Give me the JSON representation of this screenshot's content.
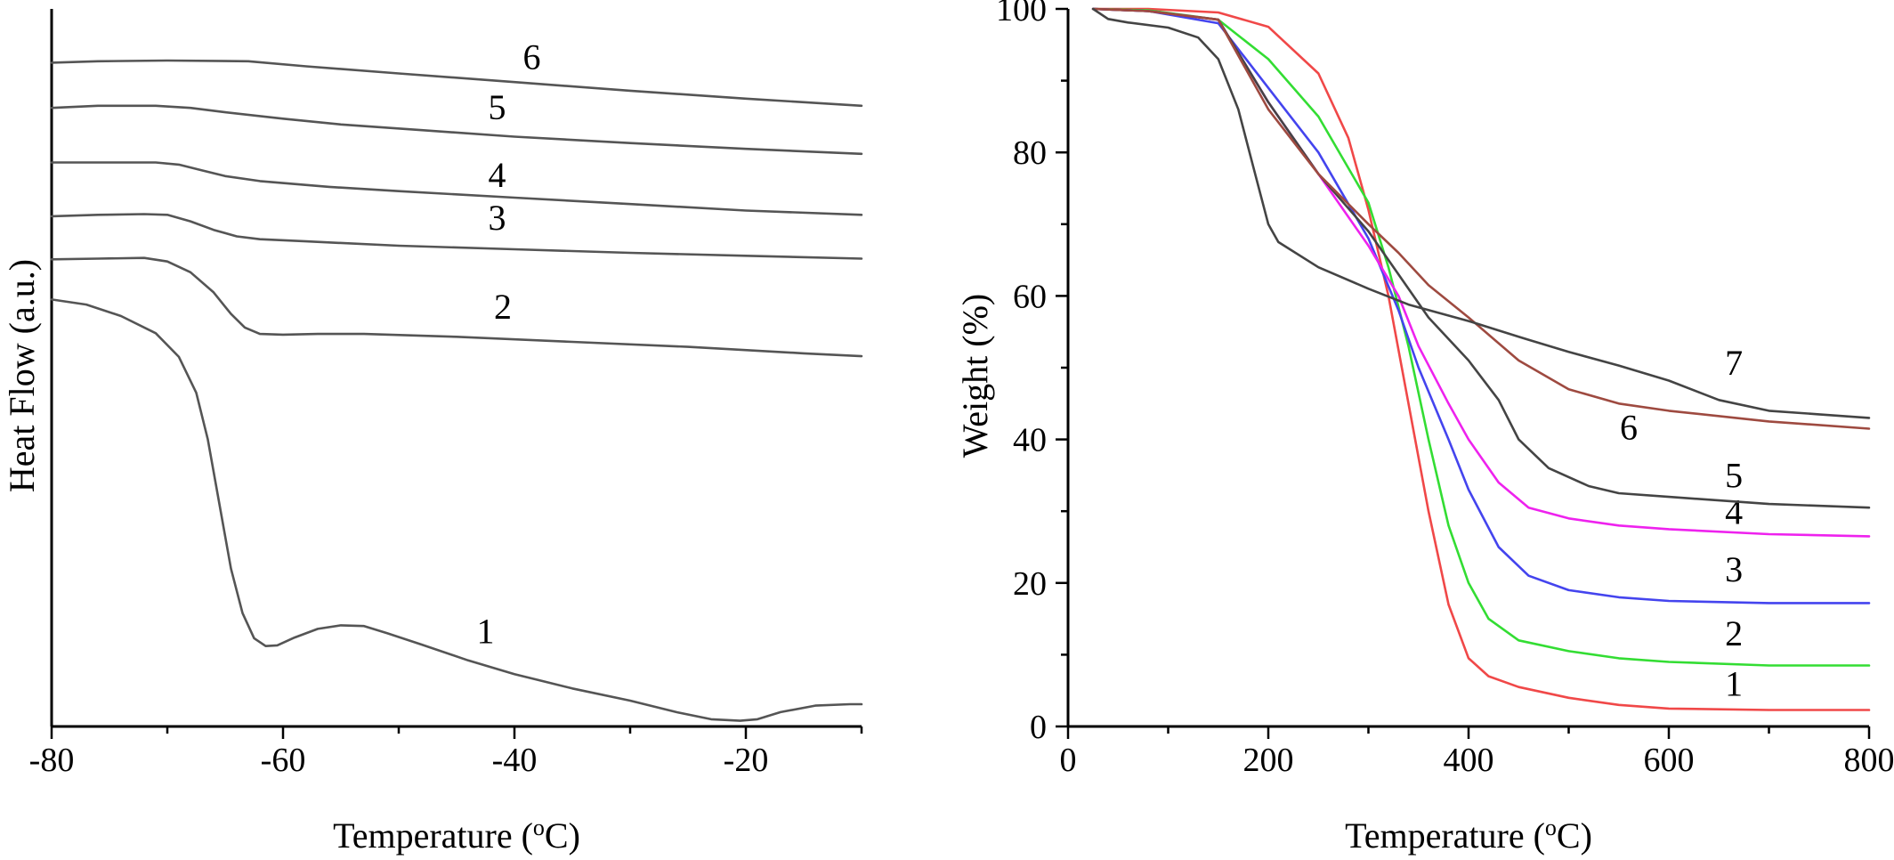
{
  "chart_data": [
    {
      "type": "line",
      "panel": "left",
      "xlabel": "Temperature (",
      "xlabel_sup": "o",
      "xlabel_tail": "C)",
      "ylabel": "Heat Flow (a.u.)",
      "xlim": [
        -80,
        -10
      ],
      "ylim": [
        0,
        100
      ],
      "x_ticks": [
        -80,
        -60,
        -40,
        -20
      ],
      "y_ticks": [],
      "color": "#555555",
      "series": [
        {
          "name": "1",
          "color": "#555555",
          "points": [
            [
              -80,
              59.5
            ],
            [
              -77,
              58.8
            ],
            [
              -74,
              57.2
            ],
            [
              -71,
              54.8
            ],
            [
              -69,
              51.5
            ],
            [
              -67.5,
              46.5
            ],
            [
              -66.5,
              40
            ],
            [
              -65.5,
              31
            ],
            [
              -64.5,
              22
            ],
            [
              -63.5,
              15.8
            ],
            [
              -62.5,
              12.3
            ],
            [
              -61.5,
              11.2
            ],
            [
              -60.5,
              11.3
            ],
            [
              -59,
              12.4
            ],
            [
              -57,
              13.6
            ],
            [
              -55,
              14.1
            ],
            [
              -53,
              14.0
            ],
            [
              -51,
              13.0
            ],
            [
              -48,
              11.4
            ],
            [
              -44,
              9.2
            ],
            [
              -40,
              7.3
            ],
            [
              -35,
              5.3
            ],
            [
              -30,
              3.6
            ],
            [
              -26,
              2.0
            ],
            [
              -23,
              1.0
            ],
            [
              -20.5,
              0.8
            ],
            [
              -19,
              1.0
            ],
            [
              -17,
              2.0
            ],
            [
              -14,
              2.9
            ],
            [
              -11,
              3.1
            ],
            [
              -10,
              3.1
            ]
          ],
          "label": {
            "text": "1",
            "x": -42.5,
            "y": 11.6
          }
        },
        {
          "name": "2",
          "color": "#555555",
          "points": [
            [
              -80,
              65.1
            ],
            [
              -76,
              65.2
            ],
            [
              -72,
              65.3
            ],
            [
              -70,
              64.8
            ],
            [
              -68,
              63.3
            ],
            [
              -66,
              60.5
            ],
            [
              -64.5,
              57.5
            ],
            [
              -63.3,
              55.6
            ],
            [
              -62,
              54.7
            ],
            [
              -60,
              54.6
            ],
            [
              -57,
              54.7
            ],
            [
              -53,
              54.7
            ],
            [
              -45,
              54.3
            ],
            [
              -35,
              53.6
            ],
            [
              -25,
              52.9
            ],
            [
              -15,
              52.0
            ],
            [
              -10,
              51.6
            ]
          ],
          "label": {
            "text": "2",
            "x": -41,
            "y": 56.8
          }
        },
        {
          "name": "3",
          "color": "#555555",
          "points": [
            [
              -80,
              71.1
            ],
            [
              -76,
              71.3
            ],
            [
              -72,
              71.4
            ],
            [
              -70,
              71.3
            ],
            [
              -68,
              70.4
            ],
            [
              -66,
              69.2
            ],
            [
              -64,
              68.3
            ],
            [
              -62,
              67.9
            ],
            [
              -58,
              67.6
            ],
            [
              -50,
              67.0
            ],
            [
              -40,
              66.5
            ],
            [
              -30,
              66.0
            ],
            [
              -20,
              65.6
            ],
            [
              -10,
              65.2
            ]
          ],
          "label": {
            "text": "3",
            "x": -41.5,
            "y": 69.2
          }
        },
        {
          "name": "4",
          "color": "#555555",
          "points": [
            [
              -80,
              78.6
            ],
            [
              -76,
              78.6
            ],
            [
              -71,
              78.6
            ],
            [
              -69,
              78.3
            ],
            [
              -67,
              77.5
            ],
            [
              -65,
              76.7
            ],
            [
              -62,
              76.0
            ],
            [
              -56,
              75.2
            ],
            [
              -50,
              74.6
            ],
            [
              -40,
              73.7
            ],
            [
              -30,
              72.8
            ],
            [
              -20,
              71.9
            ],
            [
              -10,
              71.3
            ]
          ],
          "label": {
            "text": "4",
            "x": -41.5,
            "y": 75.2
          }
        },
        {
          "name": "5",
          "color": "#555555",
          "points": [
            [
              -80,
              86.2
            ],
            [
              -76,
              86.5
            ],
            [
              -71,
              86.5
            ],
            [
              -68,
              86.2
            ],
            [
              -65,
              85.6
            ],
            [
              -60,
              84.7
            ],
            [
              -55,
              83.9
            ],
            [
              -48,
              83.1
            ],
            [
              -40,
              82.2
            ],
            [
              -30,
              81.3
            ],
            [
              -20,
              80.5
            ],
            [
              -10,
              79.8
            ]
          ],
          "label": {
            "text": "5",
            "x": -41.5,
            "y": 84.6
          }
        },
        {
          "name": "6",
          "color": "#555555",
          "points": [
            [
              -80,
              92.5
            ],
            [
              -76,
              92.7
            ],
            [
              -70,
              92.8
            ],
            [
              -63,
              92.7
            ],
            [
              -58,
              92.0
            ],
            [
              -50,
              91.0
            ],
            [
              -40,
              89.8
            ],
            [
              -30,
              88.6
            ],
            [
              -20,
              87.5
            ],
            [
              -10,
              86.5
            ]
          ],
          "label": {
            "text": "6",
            "x": -38.5,
            "y": 91.6
          }
        }
      ]
    },
    {
      "type": "line",
      "panel": "right",
      "xlabel": "Temperature (",
      "xlabel_sup": "o",
      "xlabel_tail": "C)",
      "ylabel": "Weight (%)",
      "xlim": [
        0,
        800
      ],
      "ylim": [
        0,
        100
      ],
      "x_ticks": [
        0,
        200,
        400,
        600,
        800
      ],
      "y_ticks": [
        0,
        20,
        40,
        60,
        80,
        100
      ],
      "series": [
        {
          "name": "1",
          "color": "#f04848",
          "points": [
            [
              25,
              100
            ],
            [
              80,
              100
            ],
            [
              150,
              99.5
            ],
            [
              200,
              97.5
            ],
            [
              250,
              91
            ],
            [
              280,
              82
            ],
            [
              300,
              72
            ],
            [
              320,
              60
            ],
            [
              340,
              45
            ],
            [
              360,
              30
            ],
            [
              380,
              17
            ],
            [
              400,
              9.5
            ],
            [
              420,
              7
            ],
            [
              450,
              5.5
            ],
            [
              500,
              4
            ],
            [
              550,
              3
            ],
            [
              600,
              2.5
            ],
            [
              700,
              2.3
            ],
            [
              800,
              2.3
            ]
          ],
          "label": {
            "text": "1",
            "x": 665,
            "y": 4.3
          }
        },
        {
          "name": "2",
          "color": "#33dd33",
          "points": [
            [
              25,
              100
            ],
            [
              80,
              99.8
            ],
            [
              150,
              98.5
            ],
            [
              200,
              93
            ],
            [
              250,
              85
            ],
            [
              300,
              73
            ],
            [
              320,
              64
            ],
            [
              340,
              53
            ],
            [
              360,
              40
            ],
            [
              380,
              28
            ],
            [
              400,
              20
            ],
            [
              420,
              15
            ],
            [
              450,
              12
            ],
            [
              500,
              10.5
            ],
            [
              550,
              9.5
            ],
            [
              600,
              9
            ],
            [
              700,
              8.5
            ],
            [
              800,
              8.5
            ]
          ],
          "label": {
            "text": "2",
            "x": 665,
            "y": 11.3
          }
        },
        {
          "name": "3",
          "color": "#4444ee",
          "points": [
            [
              25,
              100
            ],
            [
              80,
              99.7
            ],
            [
              150,
              98
            ],
            [
              200,
              89
            ],
            [
              250,
              80
            ],
            [
              300,
              68
            ],
            [
              330,
              58
            ],
            [
              350,
              50
            ],
            [
              380,
              40
            ],
            [
              400,
              33
            ],
            [
              430,
              25
            ],
            [
              460,
              21
            ],
            [
              500,
              19
            ],
            [
              550,
              18
            ],
            [
              600,
              17.5
            ],
            [
              700,
              17.2
            ],
            [
              800,
              17.2
            ]
          ],
          "label": {
            "text": "3",
            "x": 665,
            "y": 20.2
          }
        },
        {
          "name": "4",
          "color": "#ee22ee",
          "points": [
            [
              25,
              100
            ],
            [
              80,
              99.7
            ],
            [
              150,
              98.5
            ],
            [
              200,
              87
            ],
            [
              250,
              77
            ],
            [
              300,
              67
            ],
            [
              330,
              60
            ],
            [
              350,
              53
            ],
            [
              380,
              45
            ],
            [
              400,
              40
            ],
            [
              430,
              34
            ],
            [
              460,
              30.5
            ],
            [
              500,
              29
            ],
            [
              550,
              28
            ],
            [
              600,
              27.5
            ],
            [
              700,
              26.8
            ],
            [
              800,
              26.5
            ]
          ],
          "label": {
            "text": "4",
            "x": 665,
            "y": 28.2
          }
        },
        {
          "name": "5",
          "color": "#444444",
          "points": [
            [
              25,
              100
            ],
            [
              80,
              99.7
            ],
            [
              150,
              98.5
            ],
            [
              200,
              87
            ],
            [
              250,
              77
            ],
            [
              300,
              69
            ],
            [
              330,
              63
            ],
            [
              360,
              57
            ],
            [
              400,
              51
            ],
            [
              430,
              45.5
            ],
            [
              450,
              40
            ],
            [
              480,
              36
            ],
            [
              520,
              33.5
            ],
            [
              550,
              32.5
            ],
            [
              600,
              32
            ],
            [
              700,
              31
            ],
            [
              800,
              30.5
            ]
          ],
          "label": {
            "text": "5",
            "x": 665,
            "y": 33.3
          }
        },
        {
          "name": "6",
          "color": "#9e4a40",
          "points": [
            [
              25,
              100
            ],
            [
              80,
              99.7
            ],
            [
              150,
              98.5
            ],
            [
              200,
              86
            ],
            [
              250,
              77
            ],
            [
              300,
              70
            ],
            [
              330,
              66
            ],
            [
              360,
              61.5
            ],
            [
              400,
              57
            ],
            [
              450,
              51
            ],
            [
              500,
              47
            ],
            [
              550,
              45
            ],
            [
              600,
              44
            ],
            [
              700,
              42.5
            ],
            [
              800,
              41.5
            ]
          ],
          "label": {
            "text": "6",
            "x": 560,
            "y": 40
          }
        },
        {
          "name": "7",
          "color": "#444444",
          "points": [
            [
              25,
              100
            ],
            [
              40,
              98.6
            ],
            [
              60,
              98.1
            ],
            [
              100,
              97.4
            ],
            [
              130,
              96
            ],
            [
              150,
              93
            ],
            [
              170,
              86
            ],
            [
              185,
              78
            ],
            [
              200,
              70
            ],
            [
              210,
              67.5
            ],
            [
              250,
              64
            ],
            [
              300,
              61
            ],
            [
              340,
              58.8
            ],
            [
              400,
              56.5
            ],
            [
              450,
              54.3
            ],
            [
              500,
              52.2
            ],
            [
              550,
              50.3
            ],
            [
              600,
              48.2
            ],
            [
              650,
              45.5
            ],
            [
              700,
              44
            ],
            [
              750,
              43.5
            ],
            [
              800,
              43
            ]
          ],
          "label": {
            "text": "7",
            "x": 665,
            "y": 49
          }
        }
      ]
    }
  ]
}
